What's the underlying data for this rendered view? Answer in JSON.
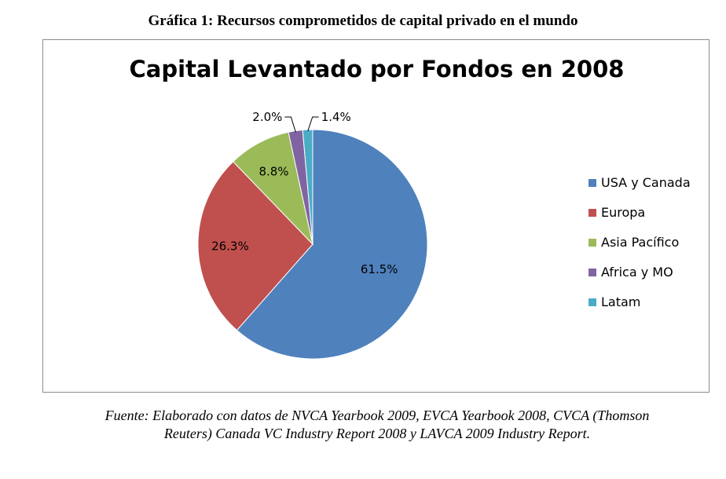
{
  "heading": "Gráfica 1: Recursos comprometidos de capital privado en el mundo",
  "source": {
    "line1": "Fuente: Elaborado con datos de NVCA Yearbook 2009, EVCA Yearbook 2008, CVCA (Thomson",
    "line2": "Reuters) Canada VC Industry Report 2008 y LAVCA 2009 Industry Report."
  },
  "chart_data": {
    "type": "pie",
    "title": "Capital Levantado por Fondos en 2008",
    "legend_position": "right",
    "slices": [
      {
        "name": "USA y Canada",
        "value": 61.5,
        "label": "61.5%",
        "color": "#4f81bd"
      },
      {
        "name": "Europa",
        "value": 26.3,
        "label": "26.3%",
        "color": "#c0504d"
      },
      {
        "name": "Asia Pacífico",
        "value": 8.8,
        "label": "8.8%",
        "color": "#9bbb59"
      },
      {
        "name": "Africa y MO",
        "value": 2.0,
        "label": "2.0%",
        "color": "#8064a2"
      },
      {
        "name": "Latam",
        "value": 1.4,
        "label": "1.4%",
        "color": "#4bacc6"
      }
    ]
  }
}
